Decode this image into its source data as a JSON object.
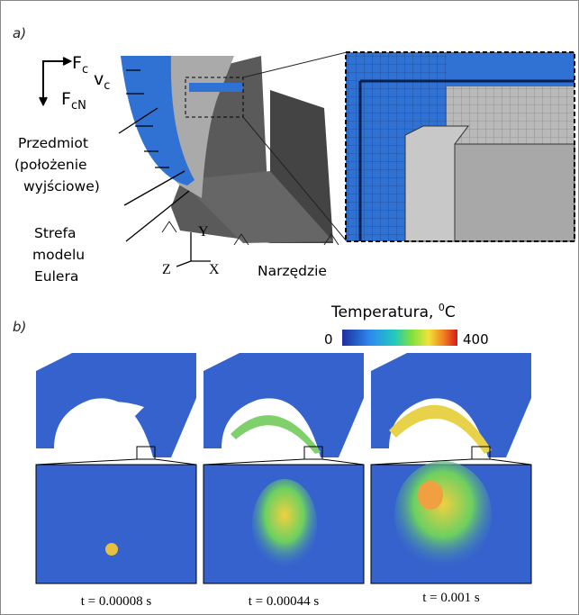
{
  "panel_a": {
    "label": "a)",
    "force_c": {
      "main": "F",
      "sub": "c"
    },
    "force_cn": {
      "main": "F",
      "sub": "cN"
    },
    "velocity": {
      "main": "v",
      "sub": "c"
    },
    "workpiece": [
      "Przedmiot",
      "(położenie",
      "wyjściowe)"
    ],
    "euler_zone": [
      "Strefa",
      "modelu",
      "Eulera"
    ],
    "axes": {
      "y": "Y",
      "z": "Z",
      "x": "X"
    },
    "tool": "Narzędzie"
  },
  "panel_b": {
    "label": "b)",
    "colorbar": {
      "title": "Temperatura, ",
      "unit_sup": "0",
      "unit": "C",
      "min": 0,
      "max": 400
    },
    "times": [
      "t = 0.00008 s",
      "t = 0.00044 s",
      "t = 0.001 s"
    ]
  }
}
